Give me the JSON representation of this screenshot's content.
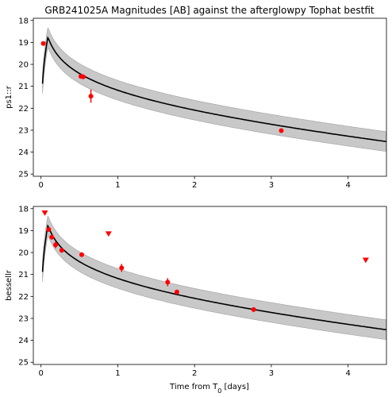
{
  "title": "GRB241025A Magnitudes [AB] against the afterglowpy Tophat bestfit",
  "chart_data": [
    {
      "type": "scatter",
      "ylabel": "ps1::r",
      "xlabel": "",
      "xlim": [
        -0.1,
        4.5
      ],
      "ylim": [
        25.1,
        17.9
      ],
      "y_inverted": true,
      "xticks": [
        0,
        1,
        2,
        3,
        4
      ],
      "yticks": [
        18,
        19,
        20,
        21,
        22,
        23,
        24,
        25
      ],
      "grid": false,
      "model_color": "#000000",
      "band_color": "#c8c8c8",
      "point_color": "#ff0000",
      "detections": [
        {
          "x": 0.03,
          "y": 19.05,
          "err": 0.1
        },
        {
          "x": 0.52,
          "y": 20.55,
          "err": 0.07
        },
        {
          "x": 0.55,
          "y": 20.57,
          "err": 0.07
        },
        {
          "x": 0.65,
          "y": 21.45,
          "err": 0.3
        },
        {
          "x": 3.13,
          "y": 23.02,
          "err": 0.08
        }
      ],
      "upper_limits": []
    },
    {
      "type": "scatter",
      "ylabel": "bessellr",
      "xlabel": "Time from T0 [days]",
      "xlim": [
        -0.1,
        4.5
      ],
      "ylim": [
        25.1,
        17.9
      ],
      "y_inverted": true,
      "xticks": [
        0,
        1,
        2,
        3,
        4
      ],
      "yticks": [
        18,
        19,
        20,
        21,
        22,
        23,
        24,
        25
      ],
      "grid": false,
      "model_color": "#000000",
      "band_color": "#c8c8c8",
      "point_color": "#ff0000",
      "detections": [
        {
          "x": 0.1,
          "y": 18.95,
          "err": 0.1
        },
        {
          "x": 0.14,
          "y": 19.3,
          "err": 0.1
        },
        {
          "x": 0.19,
          "y": 19.65,
          "err": 0.15
        },
        {
          "x": 0.27,
          "y": 19.9,
          "err": 0.08
        },
        {
          "x": 0.53,
          "y": 20.1,
          "err": 0.06
        },
        {
          "x": 1.05,
          "y": 20.7,
          "err": 0.18
        },
        {
          "x": 1.65,
          "y": 21.35,
          "err": 0.18
        },
        {
          "x": 1.77,
          "y": 21.8,
          "err": 0.08
        },
        {
          "x": 2.77,
          "y": 22.6,
          "err": 0.08
        }
      ],
      "upper_limits": [
        {
          "x": 0.05,
          "y": 18.2
        },
        {
          "x": 0.88,
          "y": 19.15
        },
        {
          "x": 4.23,
          "y": 20.35
        }
      ]
    }
  ]
}
